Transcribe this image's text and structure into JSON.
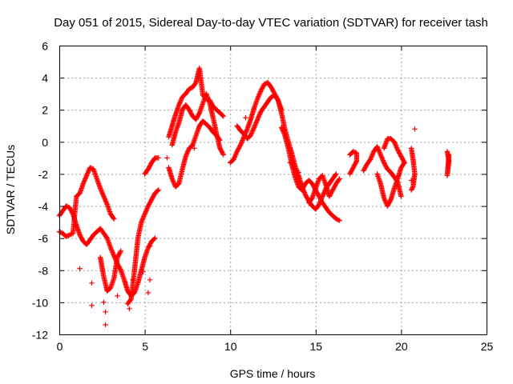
{
  "chart_data": {
    "type": "scatter",
    "marker": "plus",
    "title": "Day 051 of 2015, Sidereal Day-to-day VTEC variation (SDTVAR) for receiver tash",
    "xlabel": "GPS time / hours",
    "ylabel": "SDTVAR / TECUs",
    "xlim": [
      0,
      25
    ],
    "ylim": [
      -12,
      6
    ],
    "xticks": [
      "0",
      "5",
      "10",
      "15",
      "20",
      "25"
    ],
    "yticks": [
      "6",
      "4",
      "2",
      "0",
      "-2",
      "-4",
      "-6",
      "-8",
      "-10",
      "-12"
    ],
    "grid": true,
    "colors": {
      "series": "#ff0000"
    },
    "series": [
      {
        "name": "tash",
        "traces": [
          [
            [
              0.0,
              -4.6
            ],
            [
              0.2,
              -4.3
            ],
            [
              0.4,
              -4.0
            ],
            [
              0.6,
              -4.1
            ],
            [
              0.8,
              -4.5
            ],
            [
              1.0,
              -5.2
            ],
            [
              1.2,
              -5.8
            ],
            [
              1.4,
              -6.2
            ],
            [
              1.6,
              -6.4
            ],
            [
              1.8,
              -6.1
            ],
            [
              2.0,
              -5.8
            ],
            [
              2.2,
              -5.6
            ],
            [
              2.4,
              -5.4
            ],
            [
              2.6,
              -5.7
            ],
            [
              2.8,
              -6.0
            ],
            [
              3.0,
              -6.6
            ],
            [
              3.2,
              -7.1
            ],
            [
              3.4,
              -7.6
            ],
            [
              3.6,
              -8.0
            ],
            [
              3.8,
              -8.6
            ],
            [
              4.0,
              -9.3
            ],
            [
              4.2,
              -9.6
            ],
            [
              4.4,
              -9.4
            ],
            [
              4.6,
              -8.8
            ],
            [
              4.8,
              -8.0
            ],
            [
              5.0,
              -7.2
            ],
            [
              5.2,
              -6.6
            ],
            [
              5.4,
              -6.2
            ],
            [
              5.6,
              -6.0
            ]
          ],
          [
            [
              0.0,
              -5.6
            ],
            [
              0.2,
              -5.7
            ],
            [
              0.4,
              -5.9
            ],
            [
              0.6,
              -5.8
            ],
            [
              0.8,
              -5.7
            ],
            [
              1.0,
              -3.4
            ],
            [
              1.2,
              -3.2
            ],
            [
              1.4,
              -2.6
            ],
            [
              1.6,
              -2.1
            ],
            [
              1.8,
              -1.6
            ],
            [
              2.0,
              -1.7
            ],
            [
              2.2,
              -2.3
            ],
            [
              2.4,
              -2.9
            ],
            [
              2.6,
              -3.4
            ],
            [
              2.8,
              -3.9
            ],
            [
              3.0,
              -4.5
            ],
            [
              3.2,
              -4.8
            ]
          ],
          [
            [
              2.4,
              -7.2
            ],
            [
              2.6,
              -8.4
            ],
            [
              2.8,
              -9.3
            ],
            [
              3.0,
              -9.1
            ],
            [
              3.2,
              -8.5
            ],
            [
              3.4,
              -7.2
            ],
            [
              3.6,
              -6.8
            ]
          ],
          [
            [
              4.0,
              -10.1
            ],
            [
              4.2,
              -9.8
            ],
            [
              4.4,
              -8.0
            ],
            [
              4.6,
              -6.0
            ],
            [
              4.8,
              -5.0
            ],
            [
              5.0,
              -4.5
            ],
            [
              5.2,
              -4.0
            ],
            [
              5.4,
              -3.6
            ],
            [
              5.6,
              -3.2
            ],
            [
              5.8,
              -3.0
            ]
          ],
          [
            [
              5.0,
              -2.0
            ],
            [
              5.2,
              -1.7
            ],
            [
              5.4,
              -1.3
            ],
            [
              5.6,
              -1.0
            ],
            [
              5.8,
              -1.0
            ]
          ],
          [
            [
              6.4,
              -1.6
            ],
            [
              6.6,
              -2.3
            ],
            [
              6.8,
              -2.8
            ],
            [
              7.0,
              -2.6
            ],
            [
              7.2,
              -1.7
            ],
            [
              7.4,
              -0.9
            ],
            [
              7.6,
              -0.4
            ],
            [
              7.8,
              -0.2
            ],
            [
              8.0,
              0.4
            ],
            [
              8.2,
              1.0
            ],
            [
              8.4,
              1.3
            ],
            [
              8.6,
              1.1
            ],
            [
              8.8,
              0.9
            ],
            [
              9.0,
              0.6
            ],
            [
              9.2,
              0.4
            ],
            [
              9.4,
              0.1
            ]
          ],
          [
            [
              6.4,
              0.3
            ],
            [
              6.6,
              1.0
            ],
            [
              6.8,
              1.7
            ],
            [
              7.0,
              2.3
            ],
            [
              7.2,
              2.8
            ],
            [
              7.4,
              3.0
            ],
            [
              7.6,
              3.3
            ],
            [
              7.8,
              3.4
            ],
            [
              8.0,
              3.7
            ],
            [
              8.2,
              4.6
            ],
            [
              8.4,
              2.9
            ],
            [
              8.6,
              2.7
            ],
            [
              8.8,
              2.6
            ],
            [
              9.0,
              2.2
            ],
            [
              9.2,
              2.0
            ],
            [
              9.4,
              1.8
            ],
            [
              9.6,
              1.6
            ]
          ],
          [
            [
              6.6,
              -0.2
            ],
            [
              6.8,
              0.6
            ],
            [
              7.0,
              1.2
            ],
            [
              7.2,
              2.0
            ],
            [
              7.4,
              2.3
            ],
            [
              7.6,
              2.0
            ],
            [
              7.8,
              1.6
            ],
            [
              8.0,
              1.4
            ],
            [
              8.2,
              1.8
            ],
            [
              8.4,
              2.4
            ],
            [
              8.6,
              3.0
            ],
            [
              8.8,
              2.4
            ],
            [
              9.0,
              1.5
            ],
            [
              9.2,
              0.5
            ],
            [
              9.4,
              -0.4
            ],
            [
              9.6,
              -0.8
            ]
          ],
          [
            [
              10.0,
              -1.3
            ],
            [
              10.2,
              -1.1
            ],
            [
              10.4,
              -0.6
            ],
            [
              10.6,
              -0.2
            ],
            [
              10.8,
              0.3
            ],
            [
              11.0,
              0.8
            ],
            [
              11.2,
              1.4
            ],
            [
              11.4,
              2.1
            ],
            [
              11.6,
              2.7
            ],
            [
              11.8,
              3.2
            ],
            [
              12.0,
              3.6
            ],
            [
              12.2,
              3.7
            ],
            [
              12.4,
              3.4
            ],
            [
              12.6,
              3.0
            ],
            [
              12.8,
              2.6
            ],
            [
              13.0,
              2.0
            ]
          ],
          [
            [
              10.4,
              1.0
            ],
            [
              10.6,
              0.7
            ],
            [
              10.8,
              0.5
            ],
            [
              11.0,
              0.2
            ],
            [
              11.2,
              0.4
            ],
            [
              11.4,
              0.9
            ],
            [
              11.6,
              1.4
            ],
            [
              11.8,
              1.9
            ],
            [
              12.0,
              2.2
            ],
            [
              12.4,
              2.8
            ],
            [
              12.6,
              2.9
            ],
            [
              12.8,
              2.6
            ],
            [
              13.0,
              1.8
            ],
            [
              13.2,
              0.8
            ],
            [
              13.4,
              0.0
            ],
            [
              13.6,
              -0.7
            ],
            [
              13.8,
              -1.5
            ],
            [
              14.0,
              -2.1
            ],
            [
              14.2,
              -2.8
            ],
            [
              14.4,
              -3.3
            ],
            [
              14.6,
              -3.7
            ],
            [
              14.8,
              -4.0
            ],
            [
              15.0,
              -4.2
            ],
            [
              15.2,
              -3.9
            ],
            [
              15.4,
              -3.4
            ],
            [
              15.6,
              -2.9
            ],
            [
              15.8,
              -2.6
            ],
            [
              16.0,
              -2.3
            ],
            [
              16.2,
              -2.0
            ]
          ],
          [
            [
              13.0,
              0.9
            ],
            [
              13.2,
              0.4
            ],
            [
              13.4,
              -0.4
            ],
            [
              13.6,
              -1.4
            ],
            [
              13.8,
              -2.2
            ],
            [
              14.0,
              -2.8
            ],
            [
              14.2,
              -3.0
            ],
            [
              14.4,
              -2.6
            ],
            [
              14.6,
              -2.4
            ],
            [
              14.8,
              -2.6
            ],
            [
              15.0,
              -3.0
            ],
            [
              15.2,
              -3.4
            ],
            [
              15.4,
              -3.8
            ],
            [
              15.6,
              -4.1
            ],
            [
              15.8,
              -4.4
            ],
            [
              16.0,
              -4.6
            ],
            [
              16.2,
              -4.8
            ],
            [
              16.4,
              -4.9
            ]
          ],
          [
            [
              14.6,
              -3.8
            ],
            [
              14.8,
              -3.5
            ],
            [
              15.0,
              -2.9
            ],
            [
              15.2,
              -2.3
            ],
            [
              15.4,
              -2.1
            ],
            [
              15.6,
              -2.7
            ],
            [
              15.8,
              -3.4
            ],
            [
              16.0,
              -3.0
            ],
            [
              16.2,
              -2.6
            ],
            [
              16.4,
              -2.3
            ]
          ],
          [
            [
              17.0,
              -2.0
            ],
            [
              17.2,
              -1.6
            ],
            [
              17.4,
              -1.2
            ],
            [
              17.4,
              -0.7
            ],
            [
              17.2,
              -0.6
            ],
            [
              17.0,
              -0.8
            ]
          ],
          [
            [
              17.8,
              -1.8
            ],
            [
              18.0,
              -1.4
            ],
            [
              18.2,
              -1.1
            ],
            [
              18.4,
              -0.6
            ],
            [
              18.6,
              -0.3
            ],
            [
              18.8,
              -0.8
            ],
            [
              19.0,
              -1.3
            ],
            [
              19.2,
              -1.7
            ],
            [
              19.4,
              -1.9
            ],
            [
              19.6,
              -2.2
            ],
            [
              19.8,
              -2.5
            ],
            [
              20.0,
              -3.4
            ]
          ],
          [
            [
              18.6,
              -2.0
            ],
            [
              18.8,
              -2.6
            ],
            [
              19.0,
              -3.5
            ],
            [
              19.2,
              -4.0
            ],
            [
              19.4,
              -3.6
            ],
            [
              19.6,
              -2.9
            ],
            [
              19.8,
              -2.3
            ],
            [
              20.0,
              -1.6
            ],
            [
              20.2,
              -1.3
            ],
            [
              19.8,
              -0.5
            ],
            [
              19.6,
              0.0
            ],
            [
              19.4,
              0.2
            ],
            [
              19.2,
              0.2
            ],
            [
              19.0,
              -0.4
            ]
          ],
          [
            [
              20.6,
              -0.4
            ],
            [
              20.7,
              -1.1
            ],
            [
              20.8,
              -2.0
            ],
            [
              20.7,
              -2.8
            ],
            [
              20.6,
              -3.0
            ]
          ],
          [
            [
              22.7,
              -0.6
            ],
            [
              22.8,
              -1.2
            ],
            [
              22.7,
              -2.1
            ],
            [
              22.8,
              -0.8
            ]
          ]
        ],
        "outliers": [
          [
            1.2,
            -7.9
          ],
          [
            1.9,
            -8.8
          ],
          [
            1.9,
            -10.2
          ],
          [
            2.7,
            -10.6
          ],
          [
            2.7,
            -11.4
          ],
          [
            2.6,
            -10.0
          ],
          [
            3.4,
            -9.6
          ],
          [
            4.1,
            -10.4
          ],
          [
            4.3,
            -8.6
          ],
          [
            4.9,
            -8.1
          ],
          [
            5.3,
            -6.5
          ],
          [
            5.3,
            -8.6
          ],
          [
            5.2,
            -9.4
          ],
          [
            6.3,
            -1.0
          ],
          [
            7.9,
            -0.4
          ],
          [
            10.9,
            1.5
          ],
          [
            13.5,
            -1.3
          ],
          [
            14.0,
            -1.9
          ],
          [
            20.8,
            0.8
          ],
          [
            20.6,
            -2.4
          ]
        ]
      }
    ]
  }
}
